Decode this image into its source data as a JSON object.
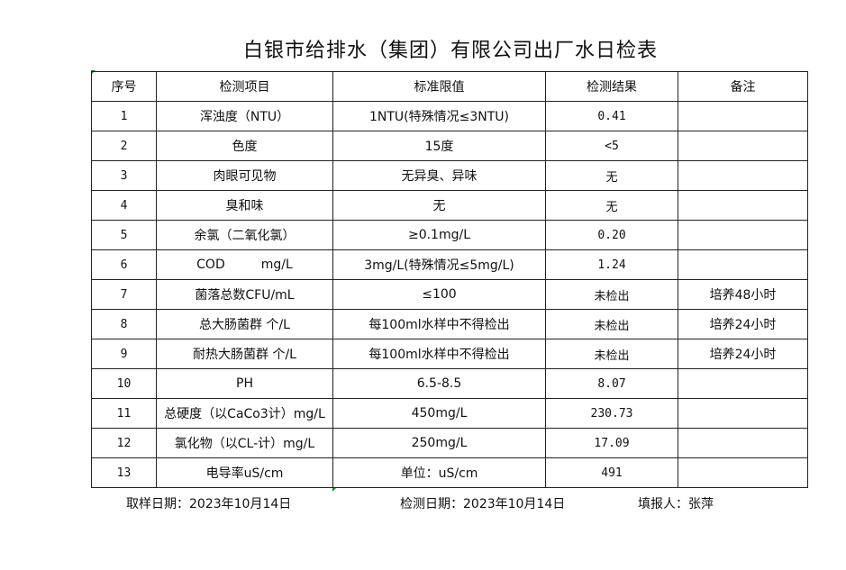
{
  "title": "白银市给排水（集团）有限公司出厂水日检表",
  "headers": [
    "序号",
    "检测项目",
    "标准限值",
    "检测结果",
    "备注"
  ],
  "rows": [
    [
      "1",
      "浑浊度（NTU）",
      "1NTU(特殊情况≤3NTU)",
      "0.41",
      ""
    ],
    [
      "2",
      "色度",
      "15度",
      "<5",
      ""
    ],
    [
      "3",
      "肉眼可见物",
      "无异臭、异味",
      "无",
      ""
    ],
    [
      "4",
      "臭和味",
      "无",
      "无",
      ""
    ],
    [
      "5",
      "余氯（二氧化氯）",
      "≥0.1mg/L",
      "0.20",
      ""
    ],
    [
      "6",
      "COD         mg/L",
      "3mg/L(特殊情况≤5mg/L)",
      "1.24",
      ""
    ],
    [
      "7",
      "菌落总数CFU/mL",
      "≤100",
      "未检出",
      "培养48小时"
    ],
    [
      "8",
      "总大肠菌群 个/L",
      "每100ml水样中不得检出",
      "未检出",
      "培养24小时"
    ],
    [
      "9",
      "耐热大肠菌群 个/L",
      "每100ml水样中不得检出",
      "未检出",
      "培养24小时"
    ],
    [
      "10",
      "PH",
      "6.5-8.5",
      "8.07",
      ""
    ],
    [
      "11",
      "总硬度（以CaCo3计）mg/L",
      "450mg/L",
      "230.73",
      ""
    ],
    [
      "12",
      "氯化物（以CL-计）mg/L",
      "250mg/L",
      "17.09",
      ""
    ],
    [
      "13",
      "电导率uS/cm",
      "单位：uS/cm",
      "491",
      ""
    ]
  ],
  "footer": {
    "sampling_date": "取样日期：2023年10月14日",
    "test_date": "检测日期：2023年10月14日",
    "reporter": "填报人：张萍"
  }
}
